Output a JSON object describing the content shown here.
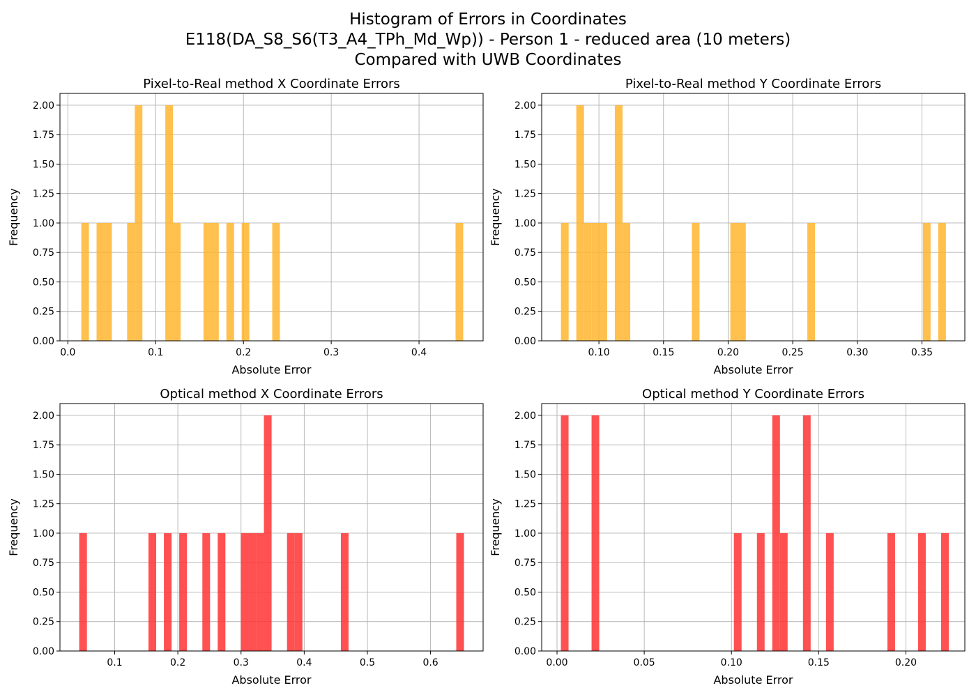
{
  "figure": {
    "title_lines": [
      "Histogram of Errors in Coordinates",
      "E118(DA_S8_S6(T3_A4_TPh_Md_Wp)) - Person 1 - reduced area (10 meters)",
      "Compared with UWB Coordinates"
    ],
    "colors": {
      "pixel_to_real": "#FFB52E",
      "optical": "#FF3333",
      "grid": "#b0b0b0"
    }
  },
  "chart_data": [
    {
      "type": "bar",
      "title": "Pixel-to-Real method X Coordinate Errors",
      "xlabel": "Absolute Error",
      "ylabel": "Frequency",
      "color": "#FFB52E",
      "xlim": [
        -0.009,
        0.473
      ],
      "ylim": [
        0,
        2.1
      ],
      "xticks": [
        0.0,
        0.1,
        0.2,
        0.3,
        0.4
      ],
      "xtick_labels": [
        "0.0",
        "0.1",
        "0.2",
        "0.3",
        "0.4"
      ],
      "yticks": [
        0,
        0.25,
        0.5,
        0.75,
        1.0,
        1.25,
        1.5,
        1.75,
        2.0
      ],
      "ytick_labels": [
        "0.00",
        "0.25",
        "0.50",
        "0.75",
        "1.00",
        "1.25",
        "1.50",
        "1.75",
        "2.00"
      ],
      "bin_width": 0.0087,
      "bins": [
        [
          0.0153,
          1
        ],
        [
          0.0327,
          1
        ],
        [
          0.0414,
          1
        ],
        [
          0.0675,
          1
        ],
        [
          0.0762,
          2
        ],
        [
          0.111,
          2
        ],
        [
          0.1197,
          1
        ],
        [
          0.1545,
          1
        ],
        [
          0.1632,
          1
        ],
        [
          0.1806,
          1
        ],
        [
          0.198,
          1
        ],
        [
          0.2328,
          1
        ],
        [
          0.4416,
          1
        ]
      ]
    },
    {
      "type": "bar",
      "title": "Pixel-to-Real method Y Coordinate Errors",
      "xlabel": "Absolute Error",
      "ylabel": "Frequency",
      "color": "#FFB52E",
      "xlim": [
        0.0557,
        0.3832
      ],
      "ylim": [
        0,
        2.1
      ],
      "xticks": [
        0.1,
        0.15,
        0.2,
        0.25,
        0.3,
        0.35
      ],
      "xtick_labels": [
        "0.10",
        "0.15",
        "0.20",
        "0.25",
        "0.30",
        "0.35"
      ],
      "yticks": [
        0,
        0.25,
        0.5,
        0.75,
        1.0,
        1.25,
        1.5,
        1.75,
        2.0
      ],
      "ytick_labels": [
        "0.00",
        "0.25",
        "0.50",
        "0.75",
        "1.00",
        "1.25",
        "1.50",
        "1.75",
        "2.00"
      ],
      "bin_width": 0.00596,
      "bins": [
        [
          0.0706,
          1
        ],
        [
          0.0825,
          2
        ],
        [
          0.0885,
          1
        ],
        [
          0.0945,
          1
        ],
        [
          0.1004,
          1
        ],
        [
          0.1123,
          2
        ],
        [
          0.1183,
          1
        ],
        [
          0.1719,
          1
        ],
        [
          0.2017,
          1
        ],
        [
          0.2077,
          1
        ],
        [
          0.2613,
          1
        ],
        [
          0.3507,
          1
        ],
        [
          0.3626,
          1
        ]
      ]
    },
    {
      "type": "bar",
      "title": "Optical method X Coordinate Errors",
      "xlabel": "Absolute Error",
      "ylabel": "Frequency",
      "color": "#FF3333",
      "xlim": [
        0.0134,
        0.6832
      ],
      "ylim": [
        0,
        2.1
      ],
      "xticks": [
        0.1,
        0.2,
        0.3,
        0.4,
        0.5,
        0.6
      ],
      "xtick_labels": [
        "0.1",
        "0.2",
        "0.3",
        "0.4",
        "0.5",
        "0.6"
      ],
      "yticks": [
        0,
        0.25,
        0.5,
        0.75,
        1.0,
        1.25,
        1.5,
        1.75,
        2.0
      ],
      "ytick_labels": [
        "0.00",
        "0.25",
        "0.50",
        "0.75",
        "1.00",
        "1.25",
        "1.50",
        "1.75",
        "2.00"
      ],
      "bin_width": 0.0122,
      "bins": [
        [
          0.0439,
          1
        ],
        [
          0.1535,
          1
        ],
        [
          0.1779,
          1
        ],
        [
          0.2022,
          1
        ],
        [
          0.2388,
          1
        ],
        [
          0.2631,
          1
        ],
        [
          0.2997,
          1
        ],
        [
          0.3119,
          1
        ],
        [
          0.3241,
          1
        ],
        [
          0.3362,
          2
        ],
        [
          0.3728,
          1
        ],
        [
          0.385,
          1
        ],
        [
          0.458,
          1
        ],
        [
          0.6407,
          1
        ]
      ]
    },
    {
      "type": "bar",
      "title": "Optical method Y Coordinate Errors",
      "xlabel": "Absolute Error",
      "ylabel": "Frequency",
      "color": "#FF3333",
      "xlim": [
        -0.0088,
        0.2338
      ],
      "ylim": [
        0,
        2.1
      ],
      "xticks": [
        0.0,
        0.05,
        0.1,
        0.15,
        0.2
      ],
      "xtick_labels": [
        "0.00",
        "0.05",
        "0.10",
        "0.15",
        "0.20"
      ],
      "yticks": [
        0,
        0.25,
        0.5,
        0.75,
        1.0,
        1.25,
        1.5,
        1.75,
        2.0
      ],
      "ytick_labels": [
        "0.00",
        "0.25",
        "0.50",
        "0.75",
        "1.00",
        "1.25",
        "1.50",
        "1.75",
        "2.00"
      ],
      "bin_width": 0.0044,
      "bins": [
        [
          0.0022,
          2
        ],
        [
          0.0198,
          2
        ],
        [
          0.1014,
          1
        ],
        [
          0.1146,
          1
        ],
        [
          0.1234,
          2
        ],
        [
          0.1278,
          1
        ],
        [
          0.141,
          2
        ],
        [
          0.1542,
          1
        ],
        [
          0.1894,
          1
        ],
        [
          0.207,
          1
        ],
        [
          0.2202,
          1
        ]
      ]
    }
  ]
}
